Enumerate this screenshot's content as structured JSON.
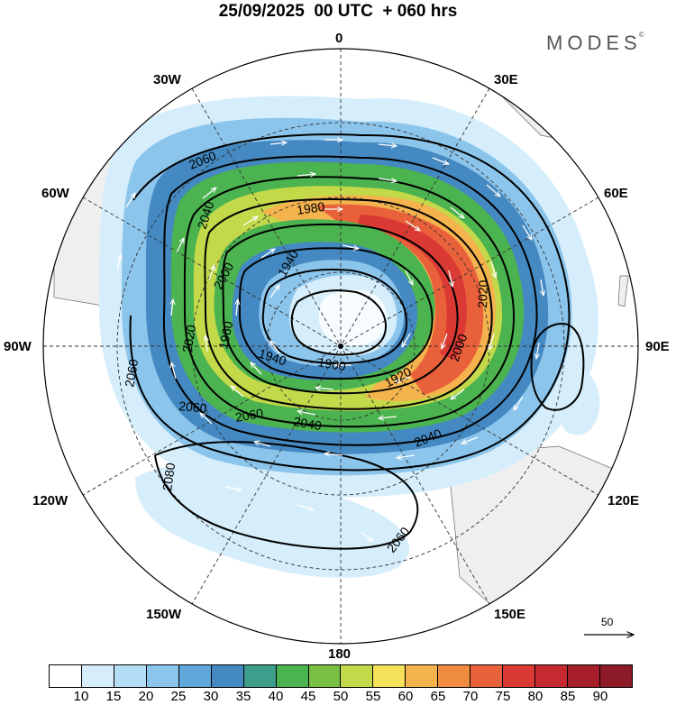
{
  "title": "25/09/2025  00 UTC  + 060 hrs",
  "brand": "MODES",
  "brand_mark": "©",
  "longitude_labels": {
    "top": "0",
    "lon_30w": "30W",
    "lon_30e": "30E",
    "lon_60w": "60W",
    "lon_60e": "60E",
    "lon_90w": "90W",
    "lon_90e": "90E",
    "lon_120w": "120W",
    "lon_120e": "120E",
    "lon_150w": "150W",
    "lon_150e": "150E",
    "bottom": "180"
  },
  "contour_labels": {
    "c2060a": "2060",
    "c2040a": "2040",
    "c1980": "1980",
    "c1940a": "1940",
    "c2000a": "2000",
    "c2020a": "2020",
    "c1960": "1960",
    "c1940b": "1940",
    "c1900": "1900",
    "c1920": "1920",
    "c2000b": "2000",
    "c2020b": "2020",
    "c2060b": "2060",
    "c2060c": "2060",
    "c2060d": "2060",
    "c2040b": "2040",
    "c2040c": "2040",
    "c2080": "2080",
    "c2060e": "2060"
  },
  "vector_scale": {
    "value": "50"
  },
  "colorbar": {
    "colors": [
      "#ffffff",
      "#d6eefb",
      "#b4def6",
      "#8cc5ec",
      "#5fa6db",
      "#4489c2",
      "#3e9e8c",
      "#4bb34f",
      "#7ac143",
      "#c3d94a",
      "#f6e15a",
      "#f4b34d",
      "#f08c3f",
      "#e9613a",
      "#da3a33",
      "#c52a30",
      "#a81f2c",
      "#8c1a27"
    ],
    "labels": [
      "10",
      "15",
      "20",
      "25",
      "30",
      "35",
      "40",
      "45",
      "50",
      "55",
      "60",
      "65",
      "70",
      "75",
      "80",
      "85",
      "90"
    ]
  }
}
